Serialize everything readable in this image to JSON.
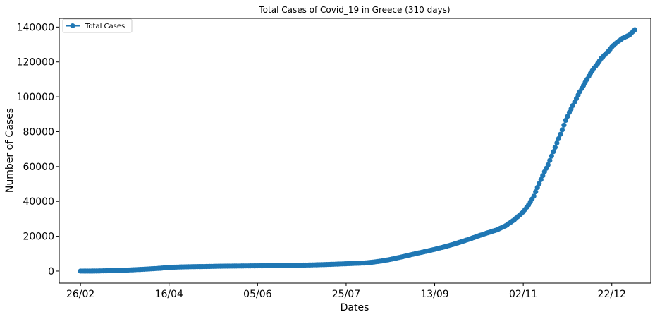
{
  "chart_data": {
    "type": "line",
    "title": "Total Cases of Covid_19 in Greece (310 days)",
    "xlabel": "Dates",
    "ylabel": "Number of Cases",
    "x_unit": "day of 2020",
    "x_range": [
      -12,
      322
    ],
    "ylim": [
      -6900,
      145000
    ],
    "x_ticks": [
      {
        "x": 0,
        "label": "26/02"
      },
      {
        "x": 50,
        "label": "16/04"
      },
      {
        "x": 100,
        "label": "05/06"
      },
      {
        "x": 150,
        "label": "25/07"
      },
      {
        "x": 200,
        "label": "13/09"
      },
      {
        "x": 250,
        "label": "02/11"
      },
      {
        "x": 300,
        "label": "22/12"
      }
    ],
    "y_ticks": [
      0,
      20000,
      40000,
      60000,
      80000,
      100000,
      120000,
      140000
    ],
    "y_tick_labels": [
      "0",
      "20000",
      "40000",
      "60000",
      "80000",
      "100000",
      "120000",
      "140000"
    ],
    "grid": false,
    "legend": {
      "position": "top-left",
      "entries": [
        "Total Cases"
      ]
    },
    "series": [
      {
        "name": "Total Cases",
        "color": "#1f77b4",
        "marker": "circle",
        "points": [
          [
            0,
            1
          ],
          [
            5,
            7
          ],
          [
            10,
            60
          ],
          [
            15,
            190
          ],
          [
            20,
            300
          ],
          [
            25,
            500
          ],
          [
            30,
            750
          ],
          [
            35,
            1000
          ],
          [
            40,
            1300
          ],
          [
            45,
            1600
          ],
          [
            50,
            2100
          ],
          [
            55,
            2300
          ],
          [
            60,
            2450
          ],
          [
            65,
            2550
          ],
          [
            70,
            2600
          ],
          [
            75,
            2700
          ],
          [
            80,
            2800
          ],
          [
            85,
            2850
          ],
          [
            90,
            2900
          ],
          [
            95,
            2950
          ],
          [
            100,
            3000
          ],
          [
            105,
            3050
          ],
          [
            110,
            3120
          ],
          [
            115,
            3200
          ],
          [
            120,
            3300
          ],
          [
            125,
            3400
          ],
          [
            130,
            3500
          ],
          [
            135,
            3650
          ],
          [
            140,
            3800
          ],
          [
            145,
            4000
          ],
          [
            150,
            4200
          ],
          [
            155,
            4400
          ],
          [
            160,
            4600
          ],
          [
            165,
            5100
          ],
          [
            170,
            5800
          ],
          [
            175,
            6700
          ],
          [
            180,
            7800
          ],
          [
            185,
            9000
          ],
          [
            190,
            10200
          ],
          [
            195,
            11300
          ],
          [
            200,
            12500
          ],
          [
            205,
            13800
          ],
          [
            210,
            15200
          ],
          [
            215,
            16800
          ],
          [
            220,
            18500
          ],
          [
            225,
            20300
          ],
          [
            230,
            22000
          ],
          [
            235,
            23600
          ],
          [
            240,
            26000
          ],
          [
            245,
            29500
          ],
          [
            250,
            34000
          ],
          [
            253,
            38000
          ],
          [
            256,
            43000
          ],
          [
            258,
            48000
          ],
          [
            260,
            52500
          ],
          [
            262,
            57000
          ],
          [
            264,
            61000
          ],
          [
            266,
            66000
          ],
          [
            268,
            71000
          ],
          [
            270,
            76000
          ],
          [
            272,
            81000
          ],
          [
            274,
            86500
          ],
          [
            276,
            91000
          ],
          [
            278,
            95000
          ],
          [
            280,
            99000
          ],
          [
            282,
            103000
          ],
          [
            284,
            106500
          ],
          [
            286,
            110000
          ],
          [
            288,
            113500
          ],
          [
            290,
            116500
          ],
          [
            292,
            119000
          ],
          [
            294,
            122000
          ],
          [
            296,
            124000
          ],
          [
            298,
            126000
          ],
          [
            300,
            128500
          ],
          [
            302,
            130500
          ],
          [
            304,
            132000
          ],
          [
            306,
            133500
          ],
          [
            308,
            134500
          ],
          [
            310,
            135500
          ],
          [
            312,
            137500
          ],
          [
            313,
            138500
          ]
        ]
      }
    ]
  }
}
